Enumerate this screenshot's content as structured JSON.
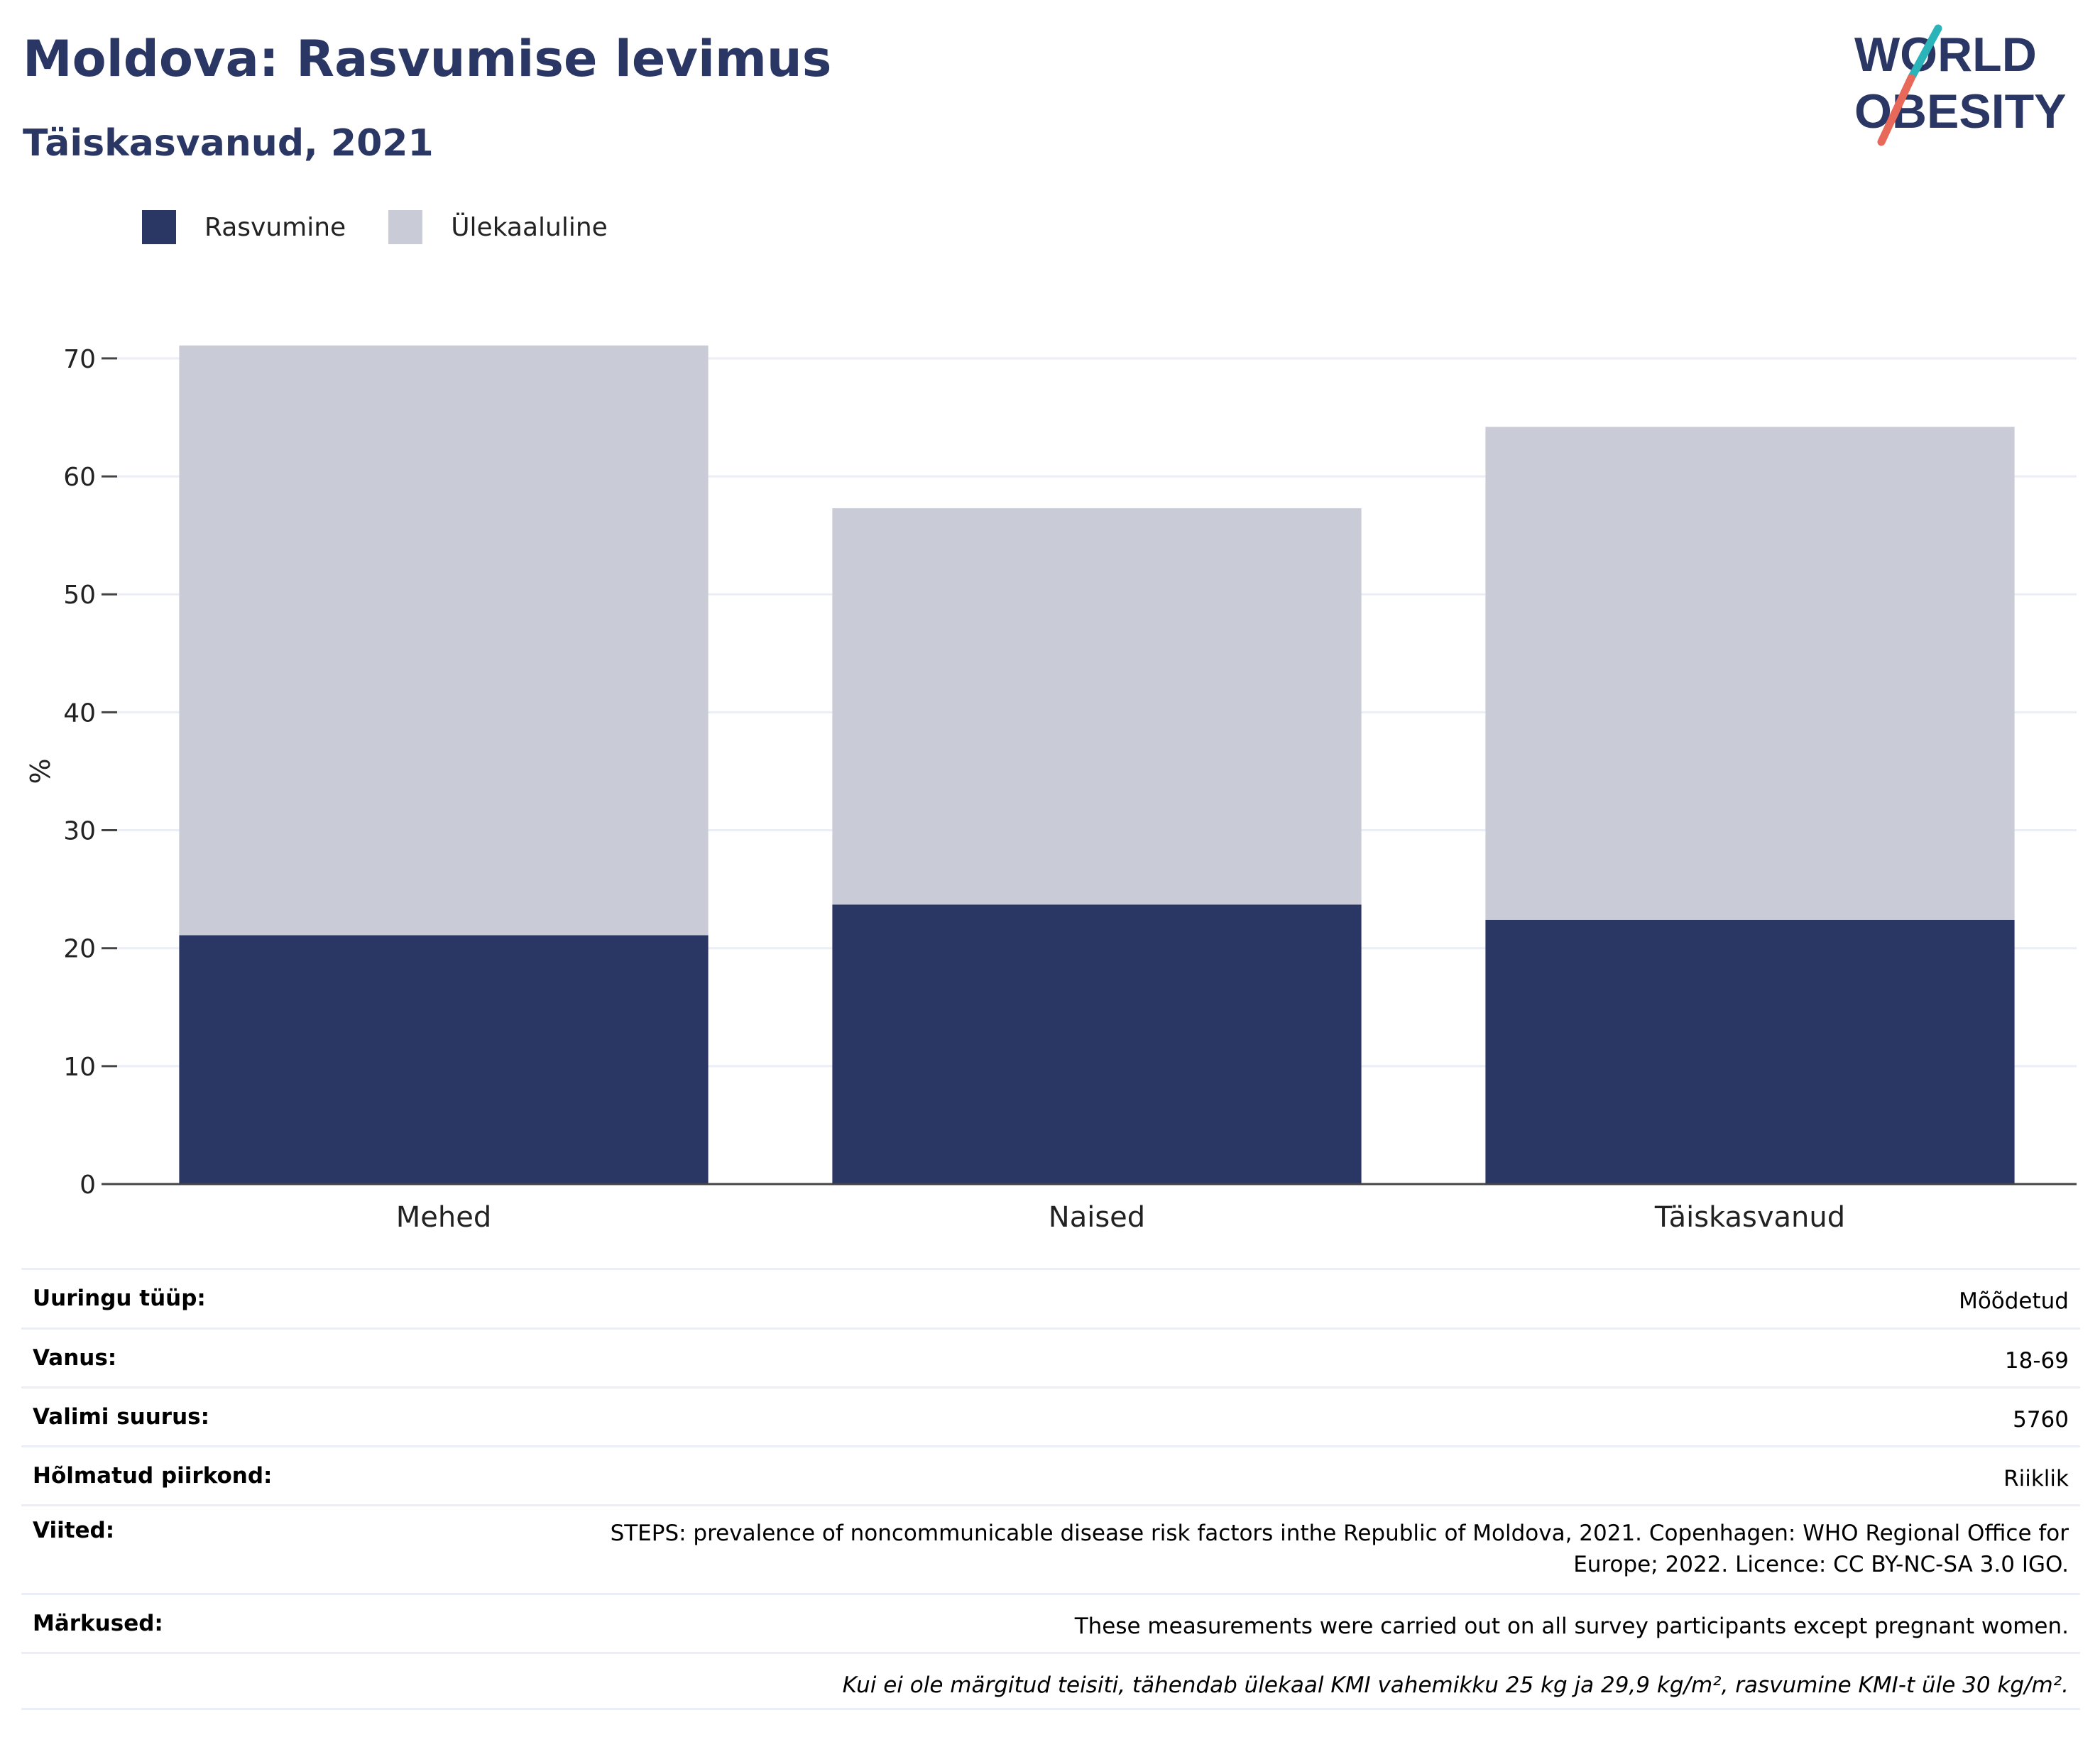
{
  "header": {
    "title": "Moldova: Rasvumise levimus",
    "subtitle": "Täiskasvanud, 2021"
  },
  "logo": {
    "line1": "WORLD",
    "line2": "OBESITY",
    "accent_teal": "#2ab3b8",
    "accent_coral": "#e8695a"
  },
  "colors": {
    "obesity": "#2a3663",
    "overweight": "#c9cbd6",
    "text_dark": "#2a3663"
  },
  "legend": [
    {
      "label": "Rasvumine",
      "color": "#2a3663"
    },
    {
      "label": "Ülekaaluline",
      "color": "#c9cbd6"
    }
  ],
  "chart_data": {
    "type": "bar",
    "stacked": true,
    "categories": [
      "Mehed",
      "Naised",
      "Täiskasvanud"
    ],
    "series": [
      {
        "name": "Rasvumine",
        "values": [
          21.1,
          23.7,
          22.4
        ]
      },
      {
        "name": "Ülekaaluline",
        "values": [
          50.0,
          33.6,
          41.8
        ]
      }
    ],
    "ylabel": "%",
    "ylim": [
      0,
      70
    ],
    "yticks": [
      0,
      10,
      20,
      30,
      40,
      50,
      60,
      70
    ],
    "grid": true,
    "legend_position": "top-left"
  },
  "meta": [
    {
      "key": "Uuringu tüüp:",
      "value": "Mõõdetud"
    },
    {
      "key": "Vanus:",
      "value": "18-69"
    },
    {
      "key": "Valimi suurus:",
      "value": "5760"
    },
    {
      "key": "Hõlmatud piirkond:",
      "value": "Riiklik"
    },
    {
      "key": "Viited:",
      "value": "STEPS: prevalence of noncommunicable disease risk factors inthe Republic of Moldova, 2021. Copenhagen: WHO Regional Office for Europe; 2022. Licence: CC BY-NC-SA 3.0 IGO."
    },
    {
      "key": "Märkused:",
      "value": "These measurements were carried out on all survey participants except pregnant women."
    }
  ],
  "footnote": "Kui ei ole märgitud teisiti, tähendab ülekaal KMI vahemikku 25 kg ja 29,9 kg/m², rasvumine KMI-t üle 30 kg/m²."
}
